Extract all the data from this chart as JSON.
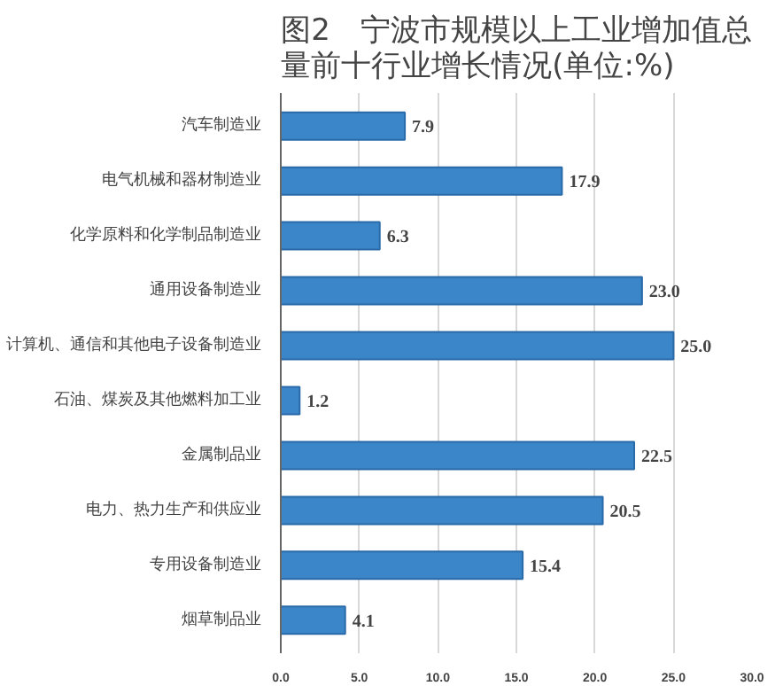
{
  "chart_data": {
    "type": "bar",
    "orientation": "horizontal",
    "title": "图2　宁波市规模以上工业增加值总量前十行业增长情况(单位:%)",
    "categories": [
      "汽车制造业",
      "电气机械和器材制造业",
      "化学原料和化学制品制造业",
      "通用设备制造业",
      "计算机、通信和其他电子设备制造业",
      "石油、煤炭及其他燃料加工业",
      "金属制品业",
      "电力、热力生产和供应业",
      "专用设备制造业",
      "烟草制品业"
    ],
    "values": [
      7.9,
      17.9,
      6.3,
      23.0,
      25.0,
      1.2,
      22.5,
      20.5,
      15.4,
      4.1
    ],
    "color": "#3a86c8",
    "xlim": [
      0,
      30
    ],
    "xticks": [
      {
        "value": 0,
        "label": "0.0"
      },
      {
        "value": 5,
        "label": "5.0"
      },
      {
        "value": 10,
        "label": "10.0"
      },
      {
        "value": 15,
        "label": "15.0"
      },
      {
        "value": 20,
        "label": "20.0"
      },
      {
        "value": 25,
        "label": "25.0"
      },
      {
        "value": 30,
        "label": "30.0"
      }
    ],
    "value_labels": [
      "7.9",
      "17.9",
      "6.3",
      "23.0",
      "25.0",
      "1.2",
      "22.5",
      "20.5",
      "15.4",
      "4.1"
    ],
    "grid": "x"
  }
}
